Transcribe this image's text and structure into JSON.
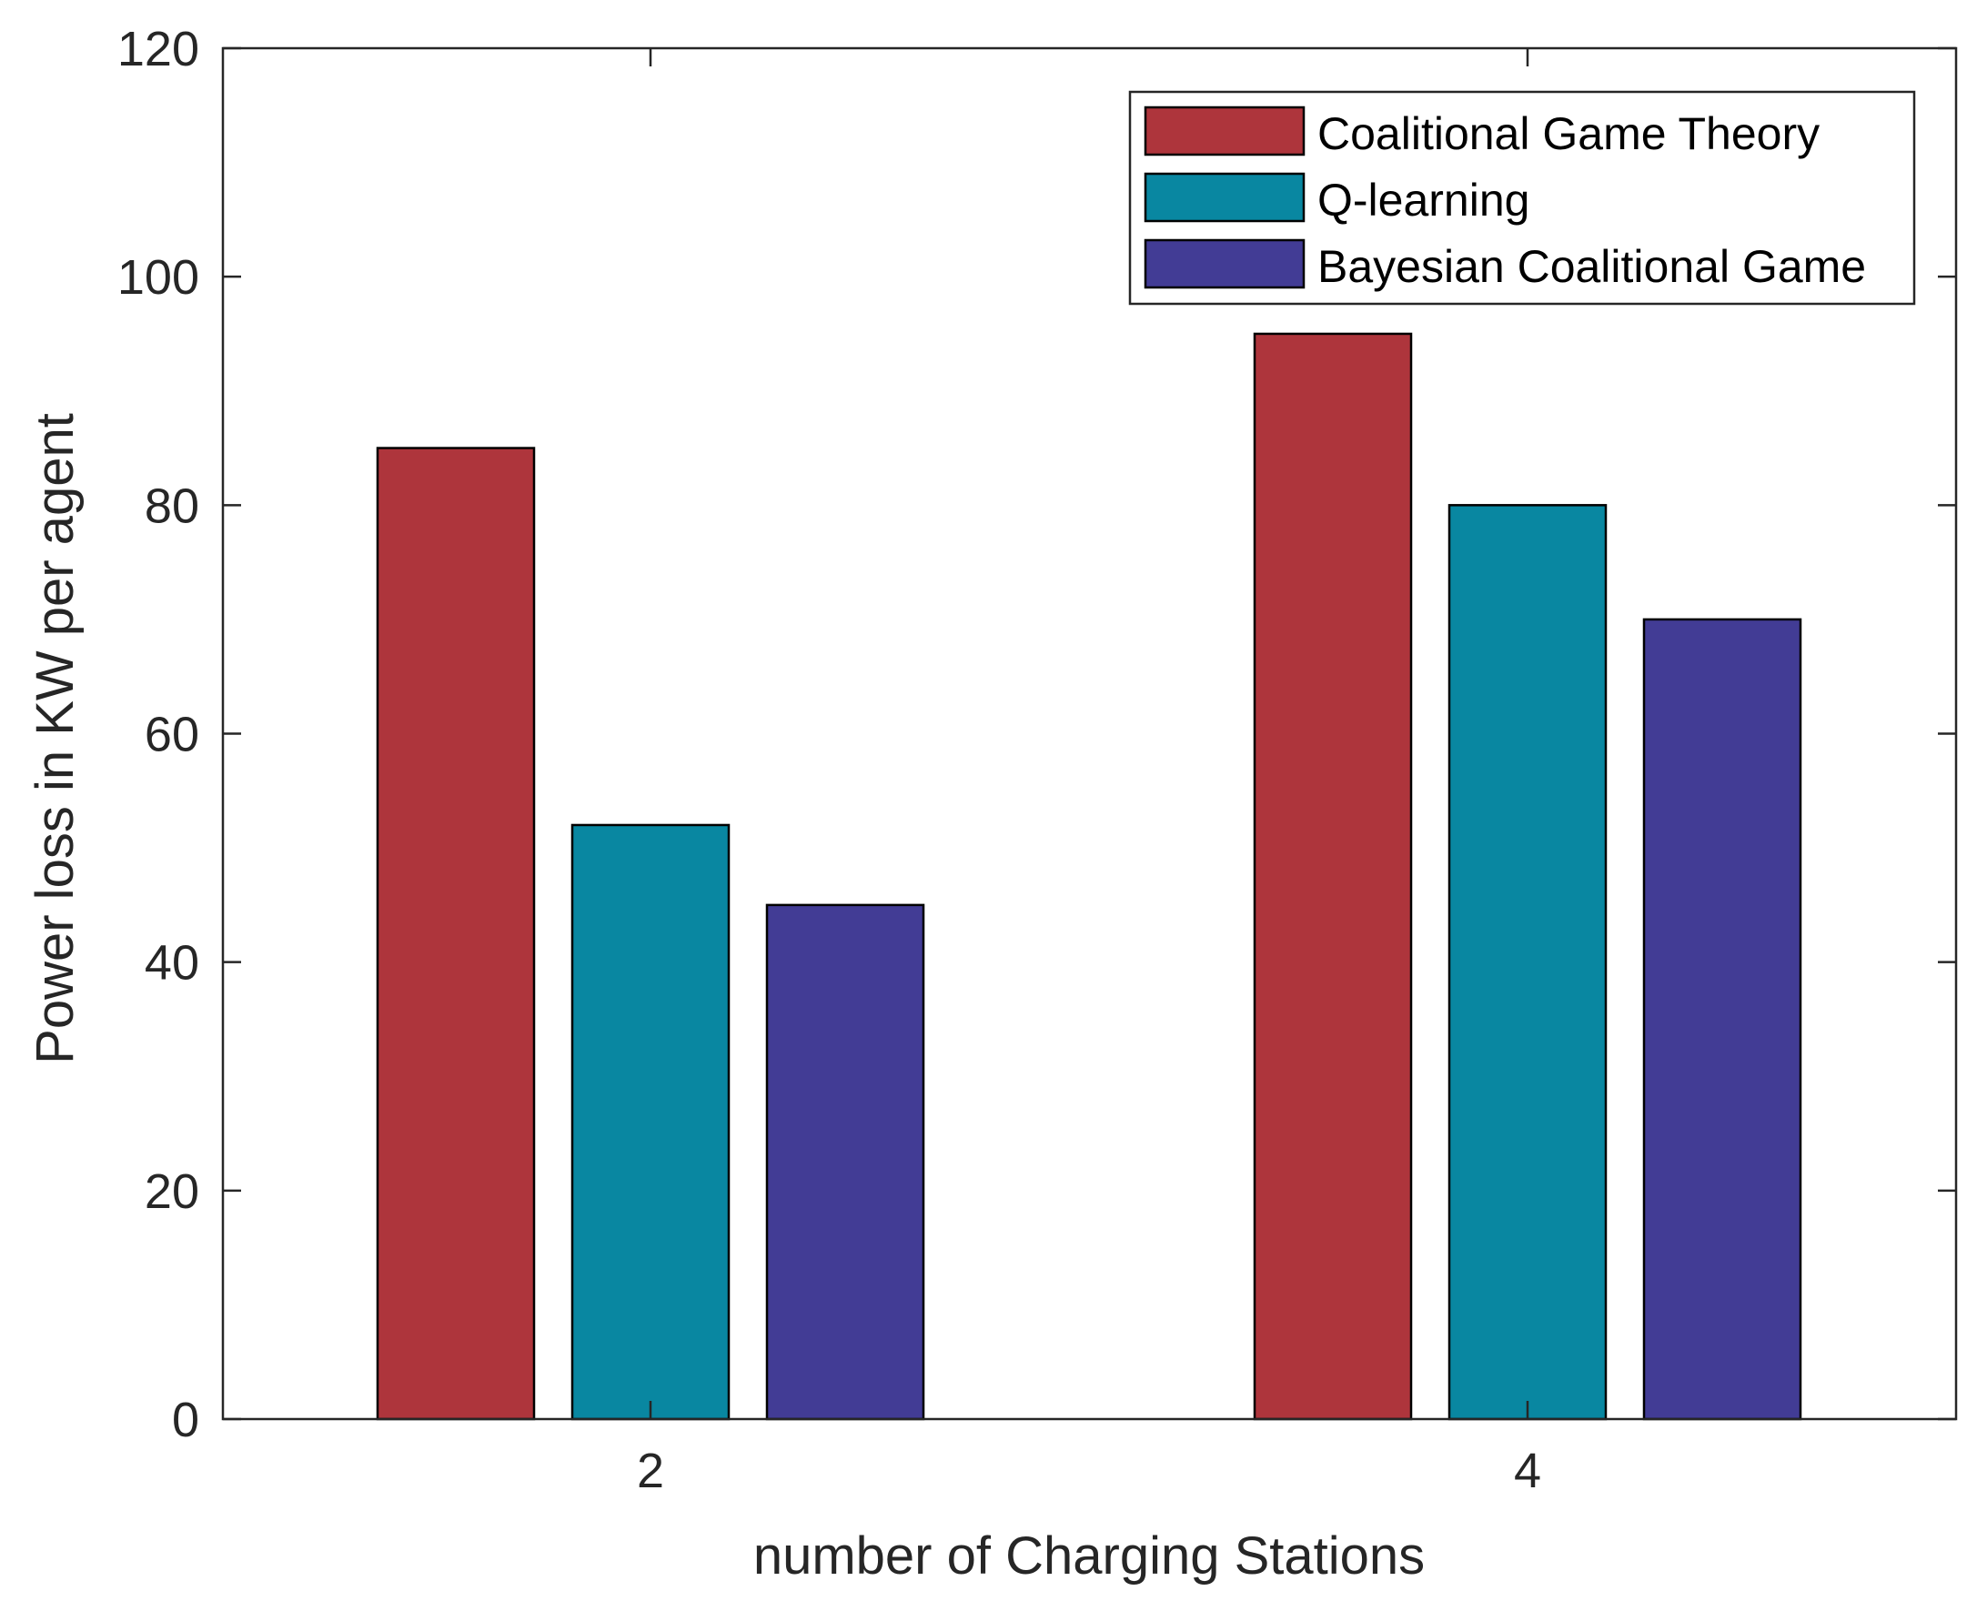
{
  "chart_data": {
    "type": "bar",
    "title": "",
    "xlabel": "number of Charging Stations",
    "ylabel": "Power loss in KW per agent",
    "categories": [
      "2",
      "4"
    ],
    "series": [
      {
        "name": "Coalitional Game Theory",
        "values": [
          85,
          95
        ],
        "color": "#AE353C"
      },
      {
        "name": "Q-learning",
        "values": [
          52,
          80
        ],
        "color": "#0987A1"
      },
      {
        "name": "Bayesian Coalitional Game",
        "values": [
          45,
          70
        ],
        "color": "#423C95"
      }
    ],
    "ylim": [
      0,
      120
    ],
    "yticks": [
      0,
      20,
      40,
      60,
      80,
      100,
      120
    ],
    "ytick_labels": [
      "0",
      "20",
      "40",
      "60",
      "80",
      "100",
      "120"
    ],
    "grid": false,
    "legend_position": "top-right"
  }
}
